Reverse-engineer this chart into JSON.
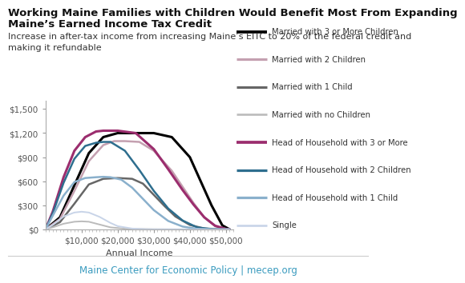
{
  "title_line1": "Working Maine Families with Children Would Benefit Most From Expanding",
  "title_line2": "Maine’s Earned Income Tax Credit",
  "subtitle": "Increase in after-tax income from increasing Maine’s EITC to 20% of the federal credit and\nmaking it refundable",
  "footer": "Maine Center for Economic Policy | mecep.org",
  "xlabel": "Annual Income",
  "ylim": [
    0,
    1600
  ],
  "xlim": [
    0,
    52000
  ],
  "xticks": [
    10000,
    20000,
    30000,
    40000,
    50000
  ],
  "yticks": [
    0,
    300,
    600,
    900,
    1200,
    1500
  ],
  "series": [
    {
      "label": "Married with 3 or More Children",
      "color": "#000000",
      "linewidth": 2.2,
      "x": [
        0,
        4000,
        8000,
        12000,
        16000,
        20000,
        22000,
        25000,
        30000,
        35000,
        40000,
        43000,
        46000,
        49000,
        51000
      ],
      "y": [
        0,
        150,
        550,
        950,
        1150,
        1200,
        1200,
        1200,
        1200,
        1150,
        900,
        600,
        300,
        50,
        0
      ]
    },
    {
      "label": "Married with 2 Children",
      "color": "#c4a0b0",
      "linewidth": 1.8,
      "x": [
        0,
        4000,
        8000,
        12000,
        16000,
        19000,
        22000,
        26000,
        30000,
        35000,
        38000,
        41000,
        44000,
        47000,
        50000,
        51000
      ],
      "y": [
        0,
        130,
        480,
        850,
        1050,
        1100,
        1100,
        1090,
        980,
        730,
        530,
        330,
        150,
        40,
        5,
        0
      ]
    },
    {
      "label": "Married with 1 Child",
      "color": "#666666",
      "linewidth": 1.8,
      "x": [
        0,
        4000,
        8000,
        12000,
        16000,
        20000,
        24000,
        27000,
        30000,
        33000,
        36000,
        40000,
        44000,
        50000,
        51000
      ],
      "y": [
        0,
        90,
        320,
        560,
        630,
        640,
        630,
        570,
        430,
        290,
        160,
        55,
        10,
        0,
        0
      ]
    },
    {
      "label": "Married with no Children",
      "color": "#bbbbbb",
      "linewidth": 1.4,
      "x": [
        0,
        2000,
        5000,
        8000,
        10000,
        12000,
        15000,
        18000,
        22000,
        30000,
        40000,
        51000
      ],
      "y": [
        0,
        25,
        70,
        95,
        100,
        95,
        60,
        25,
        8,
        2,
        0,
        0
      ]
    },
    {
      "label": "Head of Household with 3 or More",
      "color": "#9b2d6e",
      "linewidth": 2.2,
      "x": [
        0,
        2000,
        5000,
        8000,
        11000,
        14000,
        16000,
        18000,
        20000,
        25000,
        30000,
        34000,
        38000,
        41000,
        44000,
        47000,
        50000,
        51000
      ],
      "y": [
        0,
        220,
        650,
        980,
        1150,
        1220,
        1230,
        1230,
        1230,
        1200,
        1000,
        750,
        490,
        310,
        150,
        45,
        5,
        0
      ]
    },
    {
      "label": "Head of Household with 2 Children",
      "color": "#2e6e8e",
      "linewidth": 1.8,
      "x": [
        0,
        2000,
        5000,
        8000,
        11000,
        14000,
        16000,
        18000,
        22000,
        26000,
        30000,
        34000,
        38000,
        42000,
        46000,
        50000,
        51000
      ],
      "y": [
        0,
        200,
        580,
        880,
        1040,
        1080,
        1090,
        1090,
        980,
        740,
        480,
        260,
        110,
        25,
        3,
        0,
        0
      ]
    },
    {
      "label": "Head of Household with 1 Child",
      "color": "#8ab0cc",
      "linewidth": 1.8,
      "x": [
        0,
        2000,
        5000,
        8000,
        11000,
        14000,
        16000,
        18000,
        21000,
        24000,
        27000,
        30000,
        34000,
        38000,
        42000,
        46000,
        50000,
        51000
      ],
      "y": [
        0,
        170,
        420,
        590,
        640,
        650,
        655,
        650,
        620,
        520,
        380,
        240,
        105,
        35,
        6,
        0,
        0,
        0
      ]
    },
    {
      "label": "Single",
      "color": "#c8d4e8",
      "linewidth": 1.4,
      "x": [
        0,
        2000,
        5000,
        8000,
        10000,
        12000,
        15000,
        18000,
        20000,
        24000,
        28000,
        51000
      ],
      "y": [
        0,
        55,
        160,
        210,
        220,
        210,
        155,
        80,
        40,
        10,
        0,
        0
      ]
    }
  ],
  "bg_color": "#ffffff",
  "title_fontsize": 9.5,
  "subtitle_fontsize": 8.0,
  "footer_color": "#3a9bbf",
  "footer_fontsize": 8.5,
  "axis_label_fontsize": 8,
  "tick_fontsize": 7.5,
  "legend_fontsize": 7.2
}
